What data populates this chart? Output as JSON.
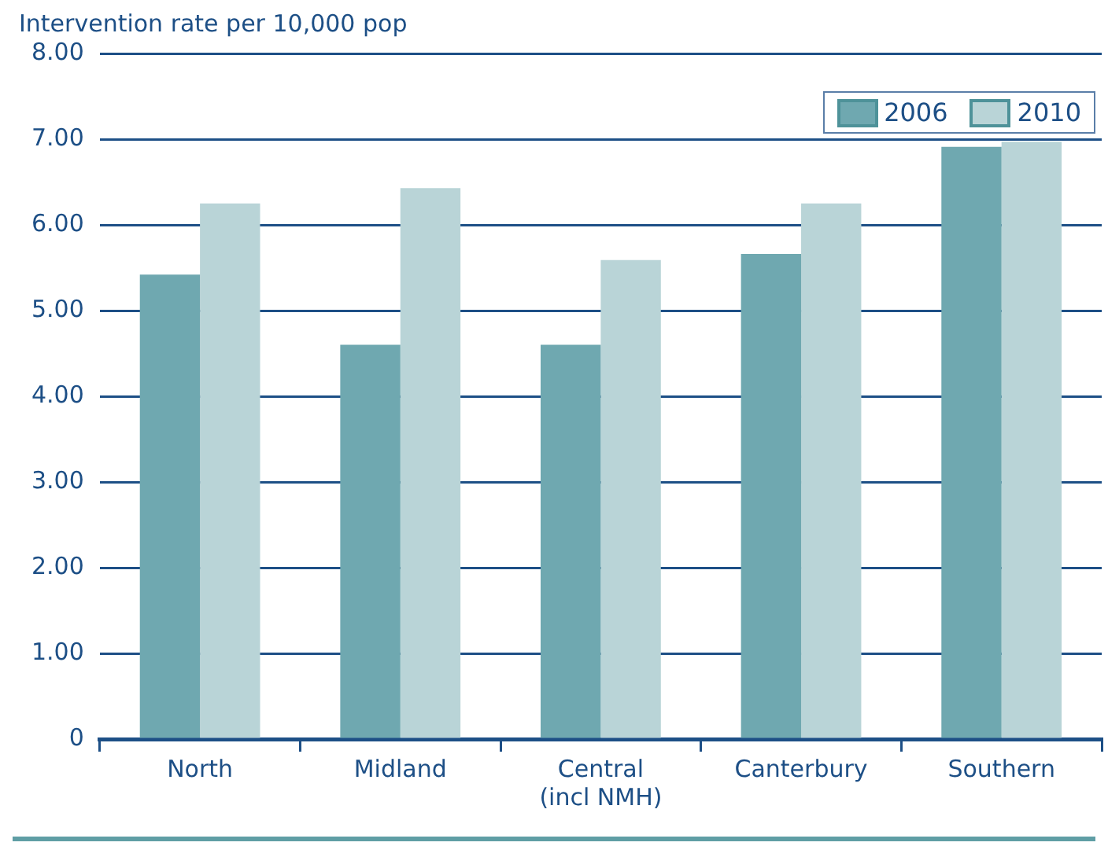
{
  "chart_data": {
    "type": "bar",
    "ylabel": "Intervention rate per 10,000 pop",
    "categories": [
      "North",
      "Midland",
      "Central\n(incl NMH)",
      "Canterbury",
      "Southern"
    ],
    "series": [
      {
        "name": "2006",
        "color": "#6fa8b0",
        "values": [
          5.42,
          4.6,
          4.6,
          5.66,
          6.91
        ]
      },
      {
        "name": "2010",
        "color": "#b9d4d7",
        "values": [
          6.25,
          6.43,
          5.59,
          6.25,
          6.97
        ]
      }
    ],
    "ylim": [
      0,
      8
    ],
    "yticks": [
      0,
      {
        "value": 1,
        "label": "1.00"
      },
      {
        "value": 2,
        "label": "2.00"
      },
      {
        "value": 3,
        "label": "3.00"
      },
      {
        "value": 4,
        "label": "4.00"
      },
      {
        "value": 5,
        "label": "5.00"
      },
      {
        "value": 6,
        "label": "6.00"
      },
      {
        "value": 7,
        "label": "7.00"
      },
      {
        "value": 8,
        "label": "8.00"
      }
    ],
    "grid": "y",
    "legend": "top right"
  }
}
